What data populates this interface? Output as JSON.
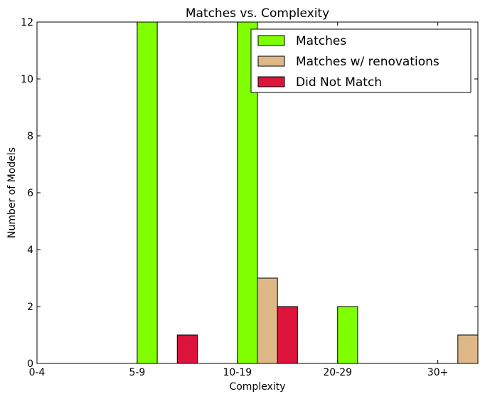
{
  "chart_data": {
    "type": "bar",
    "title": "Matches vs. Complexity",
    "xlabel": "Complexity",
    "ylabel": "Number of Models",
    "categories": [
      "0-4",
      "5-9",
      "10-19",
      "20-29",
      "30+"
    ],
    "ylim": [
      0,
      12
    ],
    "yticks": [
      0,
      2,
      4,
      6,
      8,
      10,
      12
    ],
    "grid": false,
    "legend_position": "top-right",
    "series": [
      {
        "name": "Matches",
        "color": "#7fff00",
        "values": [
          0,
          12,
          12,
          2,
          0
        ]
      },
      {
        "name": "Matches w/ renovations",
        "color": "#deb887",
        "values": [
          0,
          0,
          3,
          0,
          1
        ]
      },
      {
        "name": "Did Not Match",
        "color": "#dc143c",
        "values": [
          0,
          1,
          2,
          0,
          0
        ]
      }
    ]
  }
}
